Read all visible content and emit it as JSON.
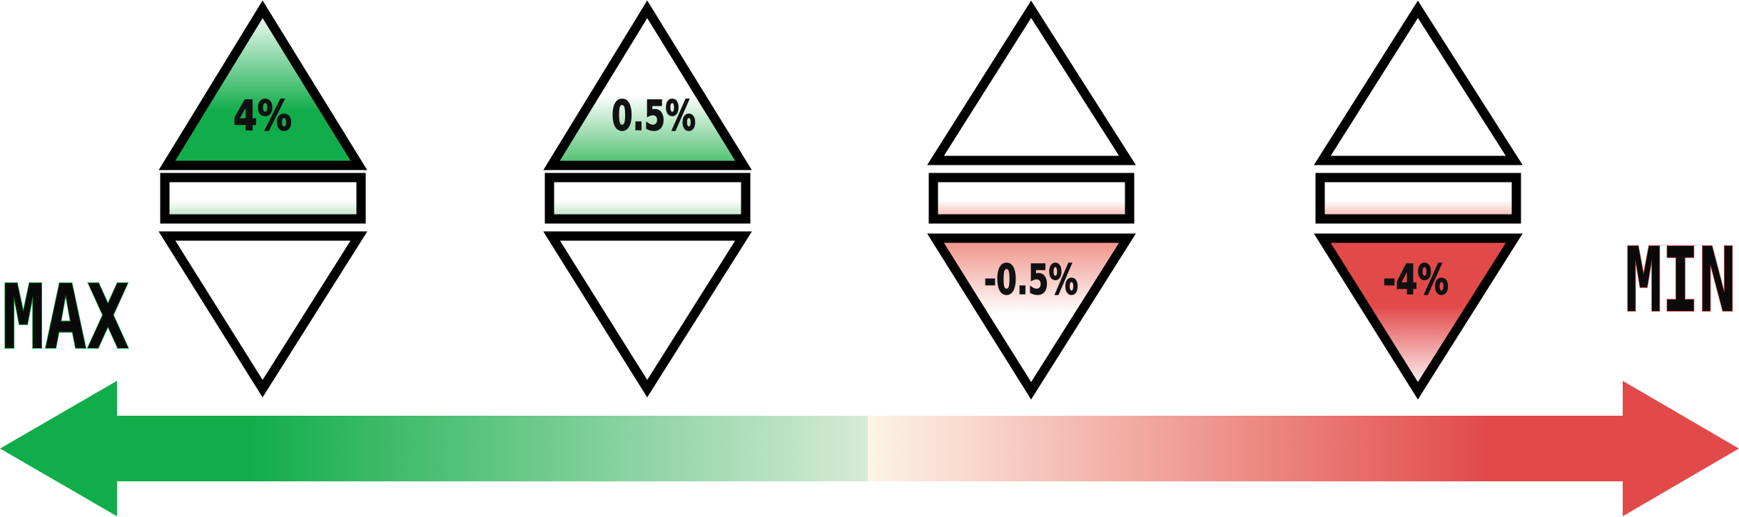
{
  "end_labels": {
    "max": "MAX",
    "min": "MIN"
  },
  "indicators": [
    {
      "label": "4%",
      "direction": "up",
      "tone": "green",
      "intensity": "strong"
    },
    {
      "label": "0.5%",
      "direction": "up",
      "tone": "green",
      "intensity": "light"
    },
    {
      "label": "-0.5%",
      "direction": "down",
      "tone": "red",
      "intensity": "light"
    },
    {
      "label": "-4%",
      "direction": "down",
      "tone": "red",
      "intensity": "strong"
    }
  ],
  "colors": {
    "green": "#12ad4b",
    "green_light": "#d6ebd6",
    "red": "#e24a4a",
    "red_light": "#fdf4e6",
    "outline": "#000000"
  }
}
